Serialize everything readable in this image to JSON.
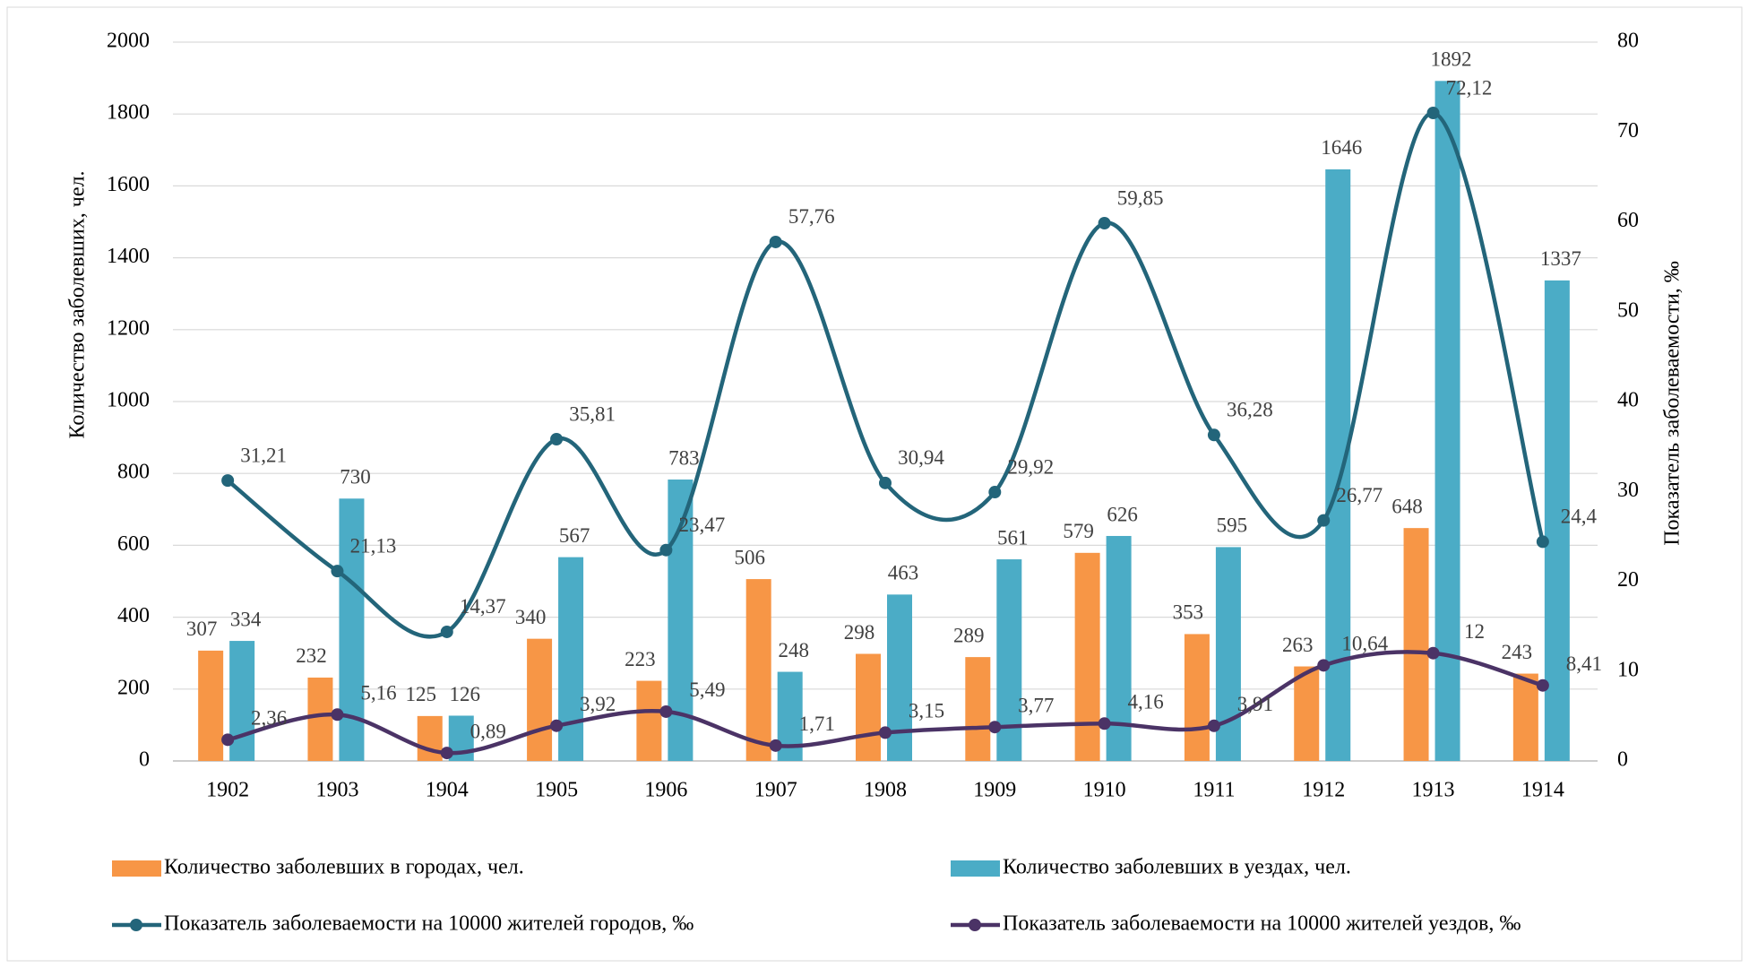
{
  "chart_data": {
    "type": "combo",
    "y_label": "Количество заболевших, чел.",
    "y2_label": "Показатель заболеваемости, ‰",
    "categories": [
      "1902",
      "1903",
      "1904",
      "1905",
      "1906",
      "1907",
      "1908",
      "1909",
      "1910",
      "1911",
      "1912",
      "1913",
      "1914"
    ],
    "ylim": [
      0,
      2000
    ],
    "yticks": [
      0,
      200,
      400,
      600,
      800,
      1000,
      1200,
      1400,
      1600,
      1800,
      2000
    ],
    "y2lim": [
      0,
      80
    ],
    "y2ticks": [
      0,
      10,
      20,
      30,
      40,
      50,
      60,
      70,
      80
    ],
    "grid": true,
    "legend": "bottom",
    "series": [
      {
        "name": "Количество заболевших в городах, чел.",
        "type": "bar",
        "color": "#f79646",
        "values": [
          307,
          232,
          125,
          340,
          223,
          506,
          298,
          289,
          579,
          353,
          263,
          648,
          243
        ]
      },
      {
        "name": "Количество заболевших в уездах, чел.",
        "type": "bar",
        "color": "#4bacc6",
        "values": [
          334,
          730,
          126,
          567,
          783,
          248,
          463,
          561,
          626,
          595,
          1646,
          1892,
          1337
        ]
      },
      {
        "name": "Показатель заболеваемости на 10000 жителей городов, ‰",
        "type": "line",
        "axis": "y2",
        "color": "#23657a",
        "values": [
          31.21,
          21.13,
          14.37,
          35.81,
          23.47,
          57.76,
          30.94,
          29.92,
          59.85,
          36.28,
          26.77,
          72.12,
          24.4
        ],
        "value_labels": [
          "31,21",
          "21,13",
          "14,37",
          "35,81",
          "23,47",
          "57,76",
          "30,94",
          "29,92",
          "59,85",
          "36,28",
          "26,77",
          "72,12",
          "24,4"
        ]
      },
      {
        "name": "Показатель заболеваемости на 10000 жителей уездов, ‰",
        "type": "line",
        "axis": "y2",
        "color": "#4b3366",
        "values": [
          2.36,
          5.16,
          0.89,
          3.92,
          5.49,
          1.71,
          3.15,
          3.77,
          4.16,
          3.91,
          10.64,
          12,
          8.41
        ],
        "value_labels": [
          "2,36",
          "5,16",
          "0,89",
          "3,92",
          "5,49",
          "1,71",
          "3,15",
          "3,77",
          "4,16",
          "3,91",
          "10,64",
          "12",
          "8,41"
        ]
      }
    ]
  }
}
